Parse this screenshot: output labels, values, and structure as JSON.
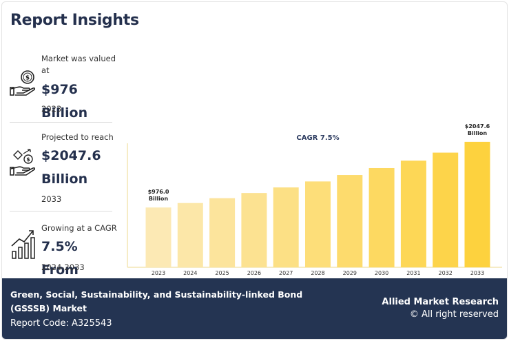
{
  "header": {
    "title": "Report Insights"
  },
  "stats": [
    {
      "label": "Market was valued at",
      "value": "$976 Billion",
      "year": "2023",
      "icon": "money-hand-icon"
    },
    {
      "label": "Projected to reach",
      "value": "$2047.6 Billion",
      "year": "2033",
      "icon": "growth-coin-hand-icon"
    },
    {
      "label": "Growing at a CAGR",
      "value": "7.5% From",
      "year": "2024-2033",
      "icon": "growth-chart-icon"
    }
  ],
  "chart_data": {
    "type": "bar",
    "categories": [
      "2023",
      "2024",
      "2025",
      "2026",
      "2027",
      "2028",
      "2029",
      "2030",
      "2031",
      "2032",
      "2033"
    ],
    "values": [
      976.0,
      1049.2,
      1127.9,
      1212.5,
      1303.4,
      1401.2,
      1506.3,
      1619.3,
      1740.7,
      1871.3,
      2047.6
    ],
    "data_labels": [
      {
        "category": "2023",
        "line1": "$976.0",
        "line2": "Billion"
      },
      {
        "category": "2033",
        "line1": "$2047.6",
        "line2": "Billion"
      }
    ],
    "annotation": "CAGR 7.5%",
    "title": "",
    "xlabel": "",
    "ylabel": "",
    "ylim": [
      0,
      2350
    ],
    "grid": false,
    "colors": {
      "start": "#fce9b4",
      "end": "#fdd23e"
    }
  },
  "footer": {
    "market_name": "Green, Social, Sustainability, and Sustainability-linked Bond (GSSSB) Market",
    "report_code": "Report Code: A325543",
    "brand": "Allied Market Research",
    "rights": "© All right reserved"
  }
}
